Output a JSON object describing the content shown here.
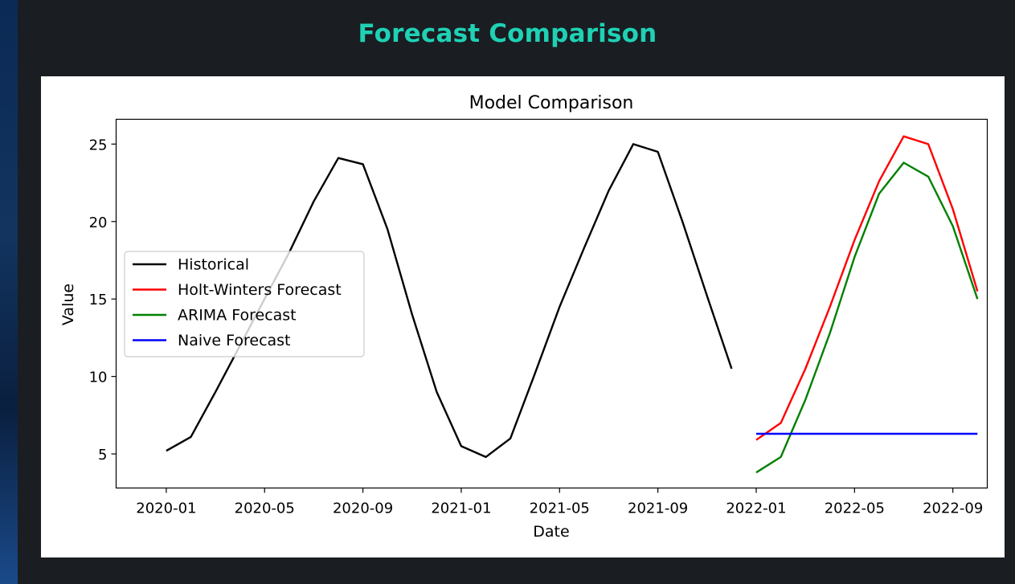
{
  "page": {
    "heading": "Forecast Comparison",
    "heading_color": "#1fd1b5"
  },
  "chart_data": {
    "type": "line",
    "title": "Model Comparison",
    "xlabel": "Date",
    "ylabel": "Value",
    "ylim": [
      2.8,
      26.6
    ],
    "xlim_months": [
      -2.04,
      33.4
    ],
    "yticks": [
      5,
      10,
      15,
      20,
      25
    ],
    "xticks": [
      {
        "label": "2020-01",
        "month": 0
      },
      {
        "label": "2020-05",
        "month": 4
      },
      {
        "label": "2020-09",
        "month": 8
      },
      {
        "label": "2021-01",
        "month": 12
      },
      {
        "label": "2021-05",
        "month": 16
      },
      {
        "label": "2021-09",
        "month": 20
      },
      {
        "label": "2022-01",
        "month": 24
      },
      {
        "label": "2022-05",
        "month": 28
      },
      {
        "label": "2022-09",
        "month": 32
      }
    ],
    "legend_position": "center-left",
    "series": [
      {
        "name": "Historical",
        "color": "#000000",
        "x": [
          0,
          1,
          2,
          3,
          4,
          5,
          6,
          7,
          8,
          9,
          10,
          11,
          12,
          13,
          14,
          15,
          16,
          17,
          18,
          19,
          20,
          21,
          22,
          23
        ],
        "values": [
          5.2,
          6.1,
          9.0,
          12.0,
          15.0,
          18.0,
          21.3,
          24.1,
          23.7,
          19.5,
          14.0,
          9.0,
          5.5,
          4.8,
          6.0,
          10.2,
          14.5,
          18.3,
          22.0,
          25.0,
          24.5,
          20.0,
          15.2,
          10.5
        ]
      },
      {
        "name": "Holt-Winters Forecast",
        "color": "#ff0000",
        "x": [
          24,
          25,
          26,
          27,
          28,
          29,
          30,
          31,
          32,
          33
        ],
        "values": [
          5.9,
          7.0,
          10.5,
          14.5,
          18.8,
          22.6,
          25.5,
          25.0,
          20.8,
          15.5
        ]
      },
      {
        "name": "ARIMA Forecast",
        "color": "#008000",
        "x": [
          24,
          25,
          26,
          27,
          28,
          29,
          30,
          31,
          32,
          33
        ],
        "values": [
          3.8,
          4.8,
          8.5,
          12.8,
          17.7,
          21.8,
          23.8,
          22.9,
          19.7,
          15.0
        ]
      },
      {
        "name": "Naive Forecast",
        "color": "#0000ff",
        "x": [
          24,
          25,
          26,
          27,
          28,
          29,
          30,
          31,
          32,
          33
        ],
        "values": [
          6.3,
          6.3,
          6.3,
          6.3,
          6.3,
          6.3,
          6.3,
          6.3,
          6.3,
          6.3
        ]
      }
    ]
  }
}
